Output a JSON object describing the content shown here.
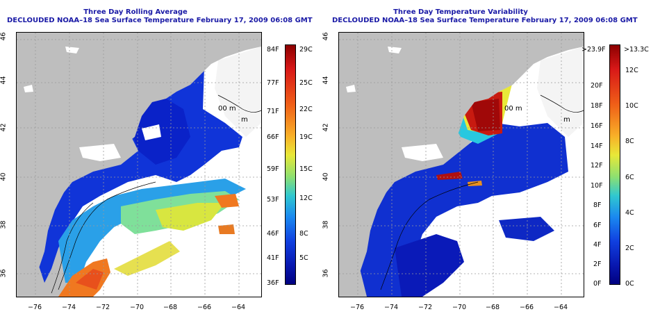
{
  "left_map": {
    "title_line1": "Three Day Rolling Average",
    "title_line2": "DECLOUDED NOAA–18 Sea Surface Temperature February 17, 2009 06:08 GMT",
    "lon_ticks": [
      "−76",
      "−74",
      "−72",
      "−70",
      "−68",
      "−66",
      "−64"
    ],
    "lat_ticks": [
      "46",
      "44",
      "42",
      "40",
      "38",
      "36"
    ],
    "contour_labels": [
      "00 m",
      "m"
    ],
    "colorbar_f": [
      "84F",
      "77F",
      "71F",
      "66F",
      "59F",
      "53F",
      "46F",
      "41F",
      "36F"
    ],
    "colorbar_c": [
      "29C",
      "25C",
      "22C",
      "19C",
      "15C",
      "12C",
      "8C",
      "5C"
    ]
  },
  "right_map": {
    "title_line1": "Three Day Temperature Variability",
    "title_line2": "DECLOUDED NOAA–18 Sea Surface Temperature February 17, 2009 06:08 GMT",
    "lon_ticks": [
      "−76",
      "−74",
      "−72",
      "−70",
      "−68",
      "−66",
      "−64"
    ],
    "lat_ticks": [
      "46",
      "44",
      "42",
      "40",
      "38",
      "36"
    ],
    "contour_labels": [
      "00 m",
      "m"
    ],
    "colorbar_f": [
      ">23.9F",
      "20F",
      "18F",
      "16F",
      "14F",
      "12F",
      "10F",
      "8F",
      "6F",
      "4F",
      "2F",
      "0F"
    ],
    "colorbar_c": [
      ">13.3C",
      "12C",
      "10C",
      "8C",
      "6C",
      "4C",
      "2C",
      "0C"
    ]
  },
  "colors": {
    "title": "#1a1aa6",
    "land": "#bebebe",
    "ocean_cold": "#1034d8",
    "no_data": "#ffffff"
  }
}
